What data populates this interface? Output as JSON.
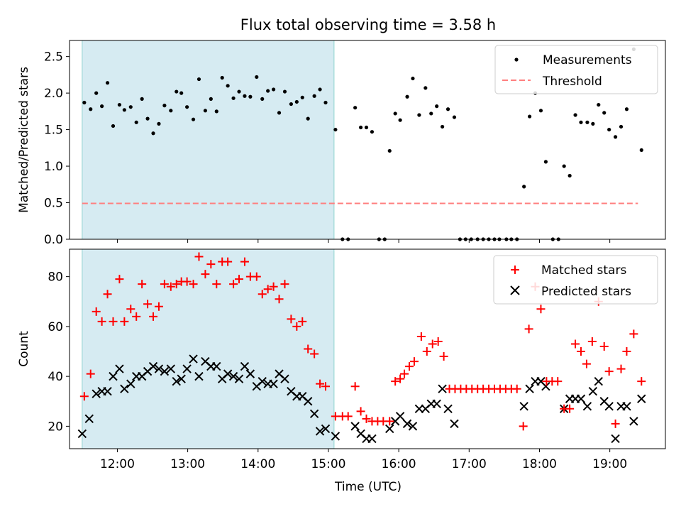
{
  "title": "Flux total observing time = 3.58 h",
  "x_ticks": [
    "12:00",
    "13:00",
    "14:00",
    "15:00",
    "16:00",
    "17:00",
    "18:00",
    "19:00"
  ],
  "colors": {
    "measurement": "#000000",
    "threshold": "#ff7f7f",
    "shade": "#add8e6",
    "matched": "#ff0000",
    "predicted": "#000000"
  },
  "chart_data": [
    {
      "type": "scatter",
      "ylabel": "Matched/Predicted stars",
      "xlim": [
        11.32,
        19.79
      ],
      "ylim": [
        0,
        2.72
      ],
      "y_ticks": [
        "0.0",
        "0.5",
        "1.0",
        "1.5",
        "2.0",
        "2.5"
      ],
      "shaded_span": [
        11.5,
        15.08
      ],
      "legend": {
        "placement": "top-right",
        "measurements": "Measurements",
        "threshold": "Threshold"
      },
      "threshold": {
        "y": 0.49,
        "x": [
          11.5,
          19.4
        ]
      },
      "measurements": [
        [
          11.53,
          1.87
        ],
        [
          11.62,
          1.78
        ],
        [
          11.7,
          2.0
        ],
        [
          11.78,
          1.82
        ],
        [
          11.86,
          2.14
        ],
        [
          11.94,
          1.55
        ],
        [
          12.03,
          1.84
        ],
        [
          12.1,
          1.77
        ],
        [
          12.19,
          1.81
        ],
        [
          12.27,
          1.6
        ],
        [
          12.35,
          1.92
        ],
        [
          12.43,
          1.65
        ],
        [
          12.51,
          1.45
        ],
        [
          12.59,
          1.58
        ],
        [
          12.67,
          1.83
        ],
        [
          12.76,
          1.76
        ],
        [
          12.84,
          2.02
        ],
        [
          12.91,
          2.0
        ],
        [
          12.99,
          1.81
        ],
        [
          13.08,
          1.64
        ],
        [
          13.16,
          2.19
        ],
        [
          13.25,
          1.76
        ],
        [
          13.33,
          1.92
        ],
        [
          13.41,
          1.75
        ],
        [
          13.49,
          2.21
        ],
        [
          13.57,
          2.1
        ],
        [
          13.65,
          1.93
        ],
        [
          13.73,
          2.02
        ],
        [
          13.81,
          1.96
        ],
        [
          13.89,
          1.95
        ],
        [
          13.98,
          2.22
        ],
        [
          14.06,
          1.92
        ],
        [
          14.14,
          2.03
        ],
        [
          14.22,
          2.05
        ],
        [
          14.3,
          1.73
        ],
        [
          14.38,
          2.02
        ],
        [
          14.47,
          1.85
        ],
        [
          14.55,
          1.88
        ],
        [
          14.63,
          1.94
        ],
        [
          14.71,
          1.65
        ],
        [
          14.8,
          1.96
        ],
        [
          14.88,
          2.05
        ],
        [
          14.96,
          1.87
        ],
        [
          15.1,
          1.5
        ],
        [
          15.2,
          0.0
        ],
        [
          15.28,
          0.0
        ],
        [
          15.38,
          1.8
        ],
        [
          15.46,
          1.53
        ],
        [
          15.54,
          1.53
        ],
        [
          15.62,
          1.47
        ],
        [
          15.72,
          0.0
        ],
        [
          15.8,
          0.0
        ],
        [
          15.87,
          1.21
        ],
        [
          15.95,
          1.72
        ],
        [
          16.02,
          1.63
        ],
        [
          16.12,
          1.95
        ],
        [
          16.2,
          2.2
        ],
        [
          16.29,
          1.7
        ],
        [
          16.38,
          2.07
        ],
        [
          16.46,
          1.72
        ],
        [
          16.54,
          1.82
        ],
        [
          16.62,
          1.54
        ],
        [
          16.7,
          1.78
        ],
        [
          16.79,
          1.67
        ],
        [
          16.87,
          0.0
        ],
        [
          16.95,
          0.0
        ],
        [
          17.03,
          0.0
        ],
        [
          17.12,
          0.0
        ],
        [
          17.2,
          0.0
        ],
        [
          17.28,
          0.0
        ],
        [
          17.36,
          0.0
        ],
        [
          17.43,
          0.0
        ],
        [
          17.53,
          0.0
        ],
        [
          17.6,
          0.0
        ],
        [
          17.68,
          0.0
        ],
        [
          17.78,
          0.72
        ],
        [
          17.86,
          1.68
        ],
        [
          17.94,
          2.0
        ],
        [
          18.02,
          1.76
        ],
        [
          18.09,
          1.06
        ],
        [
          18.19,
          0.0
        ],
        [
          18.27,
          0.0
        ],
        [
          18.35,
          1.0
        ],
        [
          18.43,
          0.87
        ],
        [
          18.51,
          1.7
        ],
        [
          18.59,
          1.6
        ],
        [
          18.68,
          1.6
        ],
        [
          18.76,
          1.58
        ],
        [
          18.84,
          1.84
        ],
        [
          18.92,
          1.73
        ],
        [
          18.99,
          1.5
        ],
        [
          19.08,
          1.4
        ],
        [
          19.16,
          1.54
        ],
        [
          19.24,
          1.78
        ],
        [
          19.34,
          2.6
        ],
        [
          19.45,
          1.22
        ]
      ]
    },
    {
      "type": "scatter",
      "xlabel": "Time (UTC)",
      "ylabel": "Count",
      "xlim": [
        11.32,
        19.79
      ],
      "ylim": [
        11,
        91
      ],
      "y_ticks": [
        "20",
        "40",
        "60",
        "80"
      ],
      "shaded_span": [
        11.5,
        15.08
      ],
      "legend": {
        "placement": "top-right",
        "matched": "Matched stars",
        "predicted": "Predicted stars"
      },
      "matched": [
        [
          11.53,
          32
        ],
        [
          11.62,
          41
        ],
        [
          11.7,
          66
        ],
        [
          11.78,
          62
        ],
        [
          11.86,
          73
        ],
        [
          11.94,
          62
        ],
        [
          12.03,
          79
        ],
        [
          12.1,
          62
        ],
        [
          12.19,
          67
        ],
        [
          12.27,
          64
        ],
        [
          12.35,
          77
        ],
        [
          12.43,
          69
        ],
        [
          12.51,
          64
        ],
        [
          12.59,
          68
        ],
        [
          12.67,
          77
        ],
        [
          12.76,
          76
        ],
        [
          12.84,
          77
        ],
        [
          12.91,
          78
        ],
        [
          12.99,
          78
        ],
        [
          13.08,
          77
        ],
        [
          13.16,
          88
        ],
        [
          13.25,
          81
        ],
        [
          13.33,
          85
        ],
        [
          13.41,
          77
        ],
        [
          13.49,
          86
        ],
        [
          13.57,
          86
        ],
        [
          13.65,
          77
        ],
        [
          13.73,
          79
        ],
        [
          13.81,
          86
        ],
        [
          13.89,
          80
        ],
        [
          13.98,
          80
        ],
        [
          14.06,
          73
        ],
        [
          14.14,
          75
        ],
        [
          14.22,
          76
        ],
        [
          14.3,
          71
        ],
        [
          14.38,
          77
        ],
        [
          14.47,
          63
        ],
        [
          14.55,
          60
        ],
        [
          14.63,
          62
        ],
        [
          14.71,
          51
        ],
        [
          14.8,
          49
        ],
        [
          14.88,
          37
        ],
        [
          14.96,
          36
        ],
        [
          15.1,
          24
        ],
        [
          15.2,
          24
        ],
        [
          15.28,
          24
        ],
        [
          15.38,
          36
        ],
        [
          15.46,
          26
        ],
        [
          15.54,
          23
        ],
        [
          15.62,
          22
        ],
        [
          15.7,
          22
        ],
        [
          15.78,
          22
        ],
        [
          15.87,
          22
        ],
        [
          15.95,
          38
        ],
        [
          16.02,
          39
        ],
        [
          16.08,
          41
        ],
        [
          16.15,
          44
        ],
        [
          16.22,
          46
        ],
        [
          16.32,
          56
        ],
        [
          16.4,
          50
        ],
        [
          16.48,
          53
        ],
        [
          16.56,
          54
        ],
        [
          16.64,
          48
        ],
        [
          16.72,
          35
        ],
        [
          16.8,
          35
        ],
        [
          16.88,
          35
        ],
        [
          16.96,
          35
        ],
        [
          17.04,
          35
        ],
        [
          17.12,
          35
        ],
        [
          17.2,
          35
        ],
        [
          17.28,
          35
        ],
        [
          17.36,
          35
        ],
        [
          17.44,
          35
        ],
        [
          17.52,
          35
        ],
        [
          17.6,
          35
        ],
        [
          17.68,
          35
        ],
        [
          17.77,
          20
        ],
        [
          17.85,
          59
        ],
        [
          17.94,
          76
        ],
        [
          18.02,
          67
        ],
        [
          18.1,
          38
        ],
        [
          18.18,
          38
        ],
        [
          18.26,
          38
        ],
        [
          18.35,
          27
        ],
        [
          18.43,
          27
        ],
        [
          18.51,
          53
        ],
        [
          18.59,
          50
        ],
        [
          18.67,
          45
        ],
        [
          18.75,
          54
        ],
        [
          18.84,
          70
        ],
        [
          18.92,
          52
        ],
        [
          18.99,
          42
        ],
        [
          19.08,
          21
        ],
        [
          19.16,
          43
        ],
        [
          19.24,
          50
        ],
        [
          19.34,
          57
        ],
        [
          19.45,
          38
        ]
      ],
      "predicted": [
        [
          11.5,
          17
        ],
        [
          11.6,
          23
        ],
        [
          11.7,
          33
        ],
        [
          11.78,
          34
        ],
        [
          11.86,
          34
        ],
        [
          11.94,
          40
        ],
        [
          12.03,
          43
        ],
        [
          12.1,
          35
        ],
        [
          12.19,
          37
        ],
        [
          12.27,
          40
        ],
        [
          12.35,
          40
        ],
        [
          12.43,
          42
        ],
        [
          12.51,
          44
        ],
        [
          12.59,
          43
        ],
        [
          12.67,
          42
        ],
        [
          12.76,
          43
        ],
        [
          12.84,
          38
        ],
        [
          12.91,
          39
        ],
        [
          12.99,
          43
        ],
        [
          13.08,
          47
        ],
        [
          13.16,
          40
        ],
        [
          13.25,
          46
        ],
        [
          13.33,
          44
        ],
        [
          13.41,
          44
        ],
        [
          13.49,
          39
        ],
        [
          13.57,
          41
        ],
        [
          13.65,
          40
        ],
        [
          13.73,
          39
        ],
        [
          13.81,
          44
        ],
        [
          13.89,
          41
        ],
        [
          13.98,
          36
        ],
        [
          14.06,
          38
        ],
        [
          14.14,
          37
        ],
        [
          14.22,
          37
        ],
        [
          14.3,
          41
        ],
        [
          14.38,
          39
        ],
        [
          14.47,
          34
        ],
        [
          14.55,
          32
        ],
        [
          14.63,
          32
        ],
        [
          14.71,
          30
        ],
        [
          14.8,
          25
        ],
        [
          14.88,
          18
        ],
        [
          14.96,
          19
        ],
        [
          15.1,
          16
        ],
        [
          15.38,
          20
        ],
        [
          15.46,
          17
        ],
        [
          15.54,
          15
        ],
        [
          15.62,
          15
        ],
        [
          15.87,
          19
        ],
        [
          15.95,
          22
        ],
        [
          16.02,
          24
        ],
        [
          16.12,
          21
        ],
        [
          16.2,
          20
        ],
        [
          16.29,
          27
        ],
        [
          16.38,
          27
        ],
        [
          16.46,
          29
        ],
        [
          16.54,
          29
        ],
        [
          16.62,
          35
        ],
        [
          16.7,
          27
        ],
        [
          16.79,
          21
        ],
        [
          17.78,
          28
        ],
        [
          17.86,
          35
        ],
        [
          17.94,
          38
        ],
        [
          18.02,
          38
        ],
        [
          18.09,
          36
        ],
        [
          18.35,
          27
        ],
        [
          18.43,
          31
        ],
        [
          18.51,
          31
        ],
        [
          18.59,
          31
        ],
        [
          18.68,
          28
        ],
        [
          18.76,
          34
        ],
        [
          18.84,
          38
        ],
        [
          18.92,
          30
        ],
        [
          18.99,
          28
        ],
        [
          19.08,
          15
        ],
        [
          19.16,
          28
        ],
        [
          19.24,
          28
        ],
        [
          19.34,
          22
        ],
        [
          19.45,
          31
        ]
      ]
    }
  ]
}
